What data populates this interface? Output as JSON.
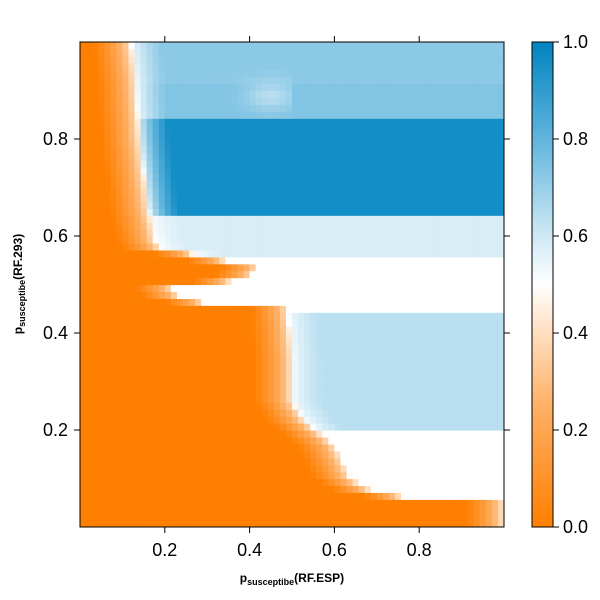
{
  "chart_data": {
    "type": "heatmap",
    "xlabel": {
      "main": "p",
      "sub": "susceptibe",
      "suffix": "(RF.ESP)"
    },
    "ylabel": {
      "main": "p",
      "sub": "susceptibe",
      "suffix": "(RF.293)"
    },
    "xlim": [
      0,
      1
    ],
    "ylim": [
      0,
      1
    ],
    "x_ticks": [
      0.2,
      0.4,
      0.6,
      0.8
    ],
    "y_ticks": [
      0.2,
      0.4,
      0.6,
      0.8
    ],
    "x_tick_labels": [
      "0.2",
      "0.4",
      "0.6",
      "0.8"
    ],
    "y_tick_labels": [
      "0.2",
      "0.4",
      "0.6",
      "0.8"
    ],
    "colorbar": {
      "range": [
        0,
        1
      ],
      "ticks": [
        0.0,
        0.2,
        0.4,
        0.6,
        0.8,
        1.0
      ],
      "tick_labels": [
        "0.0",
        "0.2",
        "0.4",
        "0.6",
        "0.8",
        "1.0"
      ],
      "low_color": "#ff7f00",
      "mid_color": "#ffffff",
      "high_color": "#0084c0"
    },
    "boundary_0_5": [
      {
        "y": 1.0,
        "x": 0.12
      },
      {
        "y": 0.93,
        "x": 0.13
      },
      {
        "y": 0.8,
        "x": 0.14
      },
      {
        "y": 0.66,
        "x": 0.16
      },
      {
        "y": 0.58,
        "x": 0.18
      },
      {
        "y": 0.5,
        "x": 0.19
      },
      {
        "y": 0.47,
        "x": 0.21
      },
      {
        "y": 0.485,
        "x": 0.25
      },
      {
        "y": 0.5,
        "x": 0.33
      },
      {
        "y": 0.52,
        "x": 0.4
      },
      {
        "y": 0.53,
        "x": 0.45
      },
      {
        "y": 0.45,
        "x": 0.49
      },
      {
        "y": 0.35,
        "x": 0.5
      },
      {
        "y": 0.26,
        "x": 0.5
      },
      {
        "y": 0.22,
        "x": 0.53
      },
      {
        "y": 0.17,
        "x": 0.6
      },
      {
        "y": 0.1,
        "x": 0.64
      },
      {
        "y": 0.07,
        "x": 0.7
      },
      {
        "y": 0.06,
        "x": 0.8
      },
      {
        "y": 0.05,
        "x": 1.0
      }
    ]
  }
}
